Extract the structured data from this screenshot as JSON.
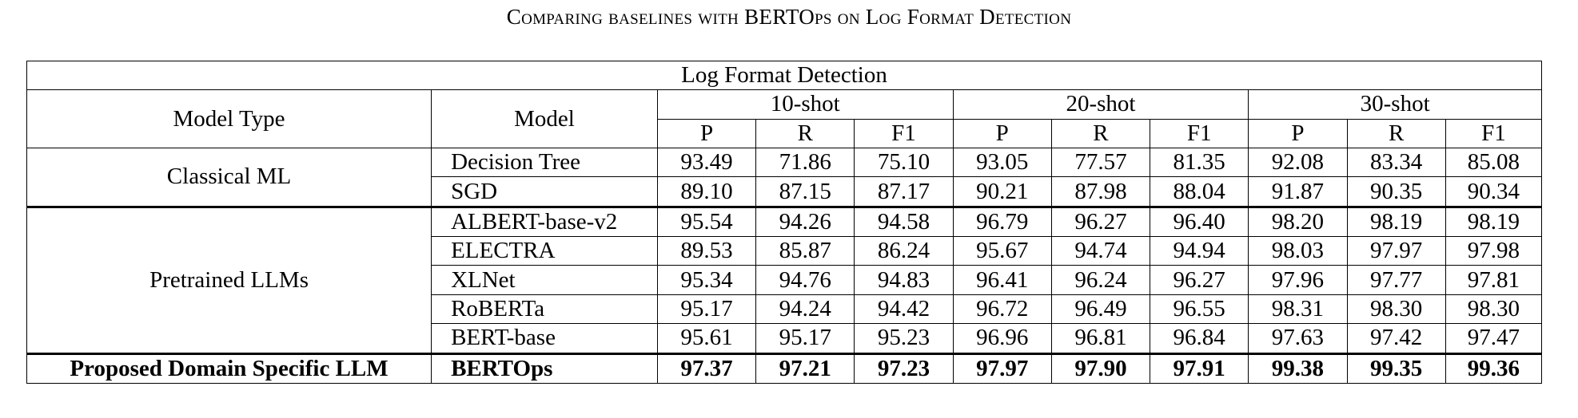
{
  "caption": "Comparing baselines with BERTOps on Log Format Detection",
  "table": {
    "title": "Log Format Detection",
    "header": {
      "model_type": "Model Type",
      "model": "Model",
      "groups": [
        "10-shot",
        "20-shot",
        "30-shot"
      ],
      "metrics": [
        "P",
        "R",
        "F1",
        "P",
        "R",
        "F1",
        "P",
        "R",
        "F1"
      ]
    },
    "groups": [
      {
        "model_type": "Classical ML",
        "rows": [
          {
            "model": "Decision Tree",
            "values": [
              "93.49",
              "71.86",
              "75.10",
              "93.05",
              "77.57",
              "81.35",
              "92.08",
              "83.34",
              "85.08"
            ]
          },
          {
            "model": "SGD",
            "values": [
              "89.10",
              "87.15",
              "87.17",
              "90.21",
              "87.98",
              "88.04",
              "91.87",
              "90.35",
              "90.34"
            ]
          }
        ]
      },
      {
        "model_type": "Pretrained LLMs",
        "rows": [
          {
            "model": "ALBERT-base-v2",
            "values": [
              "95.54",
              "94.26",
              "94.58",
              "96.79",
              "96.27",
              "96.40",
              "98.20",
              "98.19",
              "98.19"
            ]
          },
          {
            "model": "ELECTRA",
            "values": [
              "89.53",
              "85.87",
              "86.24",
              "95.67",
              "94.74",
              "94.94",
              "98.03",
              "97.97",
              "97.98"
            ]
          },
          {
            "model": "XLNet",
            "values": [
              "95.34",
              "94.76",
              "94.83",
              "96.41",
              "96.24",
              "96.27",
              "97.96",
              "97.77",
              "97.81"
            ]
          },
          {
            "model": "RoBERTa",
            "values": [
              "95.17",
              "94.24",
              "94.42",
              "96.72",
              "96.49",
              "96.55",
              "98.31",
              "98.30",
              "98.30"
            ]
          },
          {
            "model": "BERT-base",
            "values": [
              "95.61",
              "95.17",
              "95.23",
              "96.96",
              "96.81",
              "96.84",
              "97.63",
              "97.42",
              "97.47"
            ]
          }
        ]
      },
      {
        "model_type": "Proposed Domain Specific LLM",
        "bold": true,
        "rows": [
          {
            "model": "BERTOps",
            "values": [
              "97.37",
              "97.21",
              "97.23",
              "97.97",
              "97.90",
              "97.91",
              "99.38",
              "99.35",
              "99.36"
            ]
          }
        ]
      }
    ]
  }
}
